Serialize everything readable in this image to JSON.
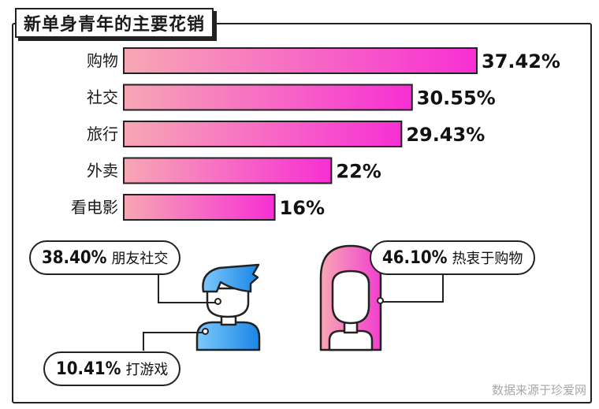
{
  "title": "新单身青年的主要花销",
  "chart_data": {
    "type": "bar",
    "orientation": "horizontal",
    "categories": [
      "购物",
      "社交",
      "旅行",
      "外卖",
      "看电影"
    ],
    "values": [
      37.42,
      30.55,
      29.43,
      22,
      16
    ],
    "value_labels": [
      "37.42%",
      "30.55%",
      "29.43%",
      "22%",
      "16%"
    ],
    "unit": "%",
    "grid": false,
    "colors": {
      "bar_start": "#f7a7b4",
      "bar_end": "#f72fd4"
    }
  },
  "callouts": {
    "social": {
      "value": "38.40%",
      "label": "朋友社交"
    },
    "games": {
      "value": "10.41%",
      "label": "打游戏"
    },
    "shopping": {
      "value": "46.10%",
      "label": "热衷于购物"
    }
  },
  "icons": {
    "male": "man-avatar-icon",
    "female": "woman-avatar-icon"
  },
  "colors": {
    "male": "#3ea3f2",
    "female": "#f064c4",
    "outline": "#222222"
  },
  "source": "数据来源于珍爱网"
}
